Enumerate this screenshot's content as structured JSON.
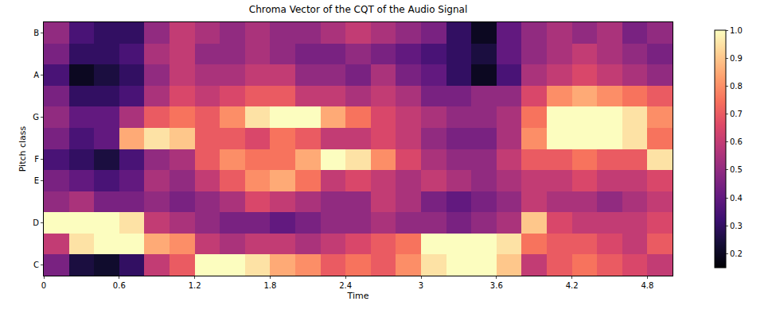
{
  "chart_data": {
    "type": "heatmap",
    "title": "Chroma Vector of the CQT of the Audio Signal",
    "x_label": "Time",
    "y_label": "Pitch class",
    "color": "magma",
    "x": [
      0.1,
      0.3,
      0.5,
      0.7,
      0.9,
      1.1,
      1.3,
      1.5,
      1.7,
      1.9,
      2.1,
      2.3,
      2.5,
      2.7,
      2.9,
      3.1,
      3.3,
      3.5,
      3.7,
      3.9,
      4.1,
      4.3,
      4.5,
      4.7,
      4.9
    ],
    "categories": [
      "C",
      null,
      "D",
      null,
      "E",
      "F",
      null,
      "G",
      null,
      "A",
      null,
      "B"
    ],
    "z": [
      [
        0.45,
        0.25,
        0.22,
        0.3,
        0.6,
        0.7,
        1.0,
        1.0,
        0.95,
        0.85,
        0.8,
        0.7,
        0.75,
        0.7,
        0.8,
        0.95,
        1.0,
        1.0,
        0.9,
        0.6,
        0.7,
        0.75,
        0.7,
        0.65,
        0.6
      ],
      [
        0.6,
        0.95,
        1.0,
        1.0,
        0.85,
        0.8,
        0.6,
        0.55,
        0.6,
        0.6,
        0.55,
        0.6,
        0.65,
        0.7,
        0.75,
        1.0,
        1.0,
        1.0,
        0.95,
        0.75,
        0.7,
        0.7,
        0.65,
        0.6,
        0.7
      ],
      [
        1.0,
        1.0,
        1.0,
        0.95,
        0.6,
        0.55,
        0.5,
        0.45,
        0.45,
        0.4,
        0.45,
        0.5,
        0.5,
        0.55,
        0.5,
        0.5,
        0.45,
        0.5,
        0.55,
        0.9,
        0.65,
        0.6,
        0.6,
        0.6,
        0.65
      ],
      [
        0.5,
        0.55,
        0.45,
        0.45,
        0.5,
        0.45,
        0.5,
        0.55,
        0.65,
        0.6,
        0.55,
        0.5,
        0.5,
        0.6,
        0.55,
        0.45,
        0.4,
        0.45,
        0.5,
        0.6,
        0.55,
        0.55,
        0.5,
        0.55,
        0.6
      ],
      [
        0.45,
        0.4,
        0.35,
        0.4,
        0.55,
        0.5,
        0.6,
        0.7,
        0.8,
        0.85,
        0.75,
        0.6,
        0.65,
        0.6,
        0.55,
        0.6,
        0.55,
        0.5,
        0.55,
        0.6,
        0.6,
        0.65,
        0.6,
        0.6,
        0.65
      ],
      [
        0.35,
        0.3,
        0.25,
        0.35,
        0.5,
        0.55,
        0.7,
        0.8,
        0.75,
        0.75,
        0.85,
        1.0,
        0.95,
        0.8,
        0.65,
        0.55,
        0.5,
        0.5,
        0.6,
        0.7,
        0.7,
        0.75,
        0.7,
        0.7,
        0.95
      ],
      [
        0.45,
        0.35,
        0.4,
        0.85,
        0.95,
        0.9,
        0.7,
        0.7,
        0.65,
        0.75,
        0.7,
        0.6,
        0.6,
        0.65,
        0.6,
        0.5,
        0.45,
        0.45,
        0.55,
        0.8,
        1.0,
        1.0,
        1.0,
        0.95,
        0.75
      ],
      [
        0.5,
        0.4,
        0.4,
        0.55,
        0.7,
        0.75,
        0.7,
        0.8,
        0.95,
        1.0,
        1.0,
        0.85,
        0.75,
        0.65,
        0.6,
        0.55,
        0.5,
        0.5,
        0.55,
        0.75,
        1.0,
        1.0,
        1.0,
        0.95,
        0.8
      ],
      [
        0.45,
        0.3,
        0.3,
        0.35,
        0.55,
        0.65,
        0.6,
        0.65,
        0.7,
        0.7,
        0.6,
        0.6,
        0.55,
        0.6,
        0.55,
        0.45,
        0.45,
        0.5,
        0.5,
        0.65,
        0.8,
        0.85,
        0.8,
        0.75,
        0.7
      ],
      [
        0.35,
        0.2,
        0.25,
        0.3,
        0.5,
        0.6,
        0.55,
        0.55,
        0.6,
        0.6,
        0.5,
        0.5,
        0.45,
        0.55,
        0.45,
        0.4,
        0.3,
        0.2,
        0.35,
        0.55,
        0.6,
        0.65,
        0.6,
        0.55,
        0.5
      ],
      [
        0.45,
        0.3,
        0.3,
        0.35,
        0.55,
        0.6,
        0.5,
        0.5,
        0.55,
        0.5,
        0.45,
        0.45,
        0.5,
        0.45,
        0.4,
        0.35,
        0.3,
        0.25,
        0.4,
        0.5,
        0.55,
        0.6,
        0.55,
        0.5,
        0.45
      ],
      [
        0.5,
        0.35,
        0.3,
        0.3,
        0.5,
        0.6,
        0.55,
        0.5,
        0.55,
        0.5,
        0.5,
        0.55,
        0.6,
        0.55,
        0.5,
        0.45,
        0.3,
        0.2,
        0.4,
        0.5,
        0.55,
        0.5,
        0.55,
        0.45,
        0.5
      ]
    ],
    "xlim": [
      0,
      5.0
    ],
    "xticks": [
      0,
      0.6,
      1.2,
      1.8,
      2.4,
      3,
      3.6,
      4.2,
      4.8
    ],
    "zlim": [
      0.15,
      1.0
    ],
    "zticks": [
      0.2,
      0.3,
      0.4,
      0.5,
      0.6,
      0.7,
      0.8,
      0.9,
      {
        "value": 1,
        "label": "1.0"
      }
    ]
  }
}
